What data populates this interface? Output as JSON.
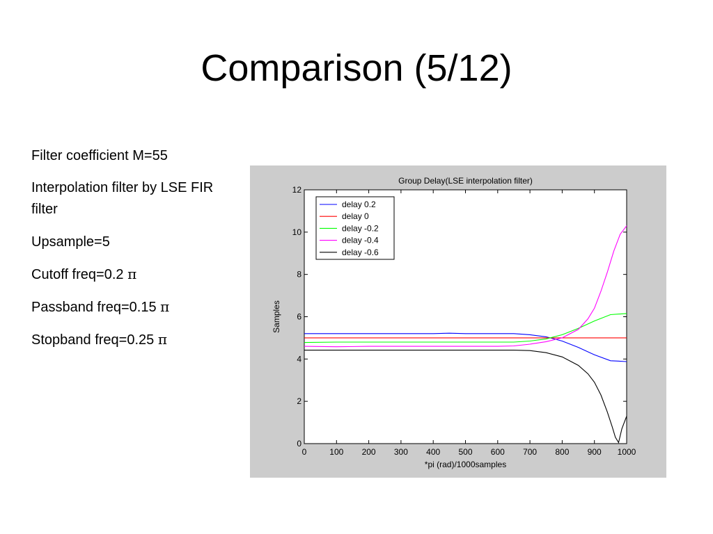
{
  "slide": {
    "title": "Comparison (5/12)",
    "bullets": [
      {
        "text": "Filter coefficient M=55",
        "pi": ""
      },
      {
        "text": "Interpolation filter by LSE FIR filter",
        "pi": ""
      },
      {
        "text": "Upsample=5",
        "pi": ""
      },
      {
        "text": "Cutoff freq=0.2 ",
        "pi": "π"
      },
      {
        "text": "Passband freq=0.15 ",
        "pi": "π"
      },
      {
        "text": "Stopband freq=0.25 ",
        "pi": "π"
      }
    ]
  },
  "colors": {
    "figure_background": "#cccccc",
    "axes_background": "#ffffff"
  },
  "chart_data": {
    "type": "line",
    "title": "Group Delay(LSE interpolation filter)",
    "xlabel": "*pi (rad)/1000samples",
    "ylabel": "Samples",
    "xlim": [
      0,
      1000
    ],
    "ylim": [
      0,
      12
    ],
    "xticks": [
      0,
      100,
      200,
      300,
      400,
      500,
      600,
      700,
      800,
      900,
      1000
    ],
    "yticks": [
      0,
      2,
      4,
      6,
      8,
      10,
      12
    ],
    "grid": false,
    "legend_position": "top-left",
    "series": [
      {
        "name": "delay 0.2",
        "color": "#0000ff",
        "x": [
          0,
          100,
          200,
          300,
          400,
          450,
          500,
          600,
          650,
          700,
          750,
          800,
          850,
          900,
          950,
          1000
        ],
        "y": [
          5.2,
          5.2,
          5.2,
          5.2,
          5.2,
          5.22,
          5.2,
          5.2,
          5.2,
          5.15,
          5.05,
          4.85,
          4.55,
          4.2,
          3.92,
          3.88
        ]
      },
      {
        "name": "delay 0",
        "color": "#ff0000",
        "x": [
          0,
          1000
        ],
        "y": [
          5.0,
          5.0
        ]
      },
      {
        "name": "delay -0.2",
        "color": "#00ff00",
        "x": [
          0,
          100,
          200,
          300,
          400,
          500,
          600,
          650,
          700,
          750,
          800,
          850,
          900,
          950,
          1000
        ],
        "y": [
          4.78,
          4.8,
          4.8,
          4.8,
          4.8,
          4.8,
          4.8,
          4.8,
          4.85,
          4.95,
          5.15,
          5.45,
          5.8,
          6.1,
          6.15
        ]
      },
      {
        "name": "delay -0.4",
        "color": "#ff00ff",
        "x": [
          0,
          100,
          200,
          300,
          400,
          500,
          600,
          650,
          700,
          750,
          800,
          850,
          880,
          900,
          920,
          940,
          960,
          980,
          1000
        ],
        "y": [
          4.6,
          4.58,
          4.6,
          4.6,
          4.6,
          4.6,
          4.6,
          4.62,
          4.7,
          4.82,
          5.0,
          5.4,
          5.9,
          6.4,
          7.2,
          8.1,
          9.1,
          9.9,
          10.3
        ]
      },
      {
        "name": "delay -0.6",
        "color": "#000000",
        "x": [
          0,
          100,
          200,
          300,
          400,
          500,
          600,
          650,
          700,
          750,
          800,
          850,
          880,
          900,
          920,
          940,
          955,
          965,
          975,
          985,
          1000
        ],
        "y": [
          4.42,
          4.42,
          4.42,
          4.42,
          4.42,
          4.42,
          4.42,
          4.42,
          4.4,
          4.3,
          4.1,
          3.7,
          3.3,
          2.9,
          2.3,
          1.5,
          0.8,
          0.3,
          0.05,
          0.7,
          1.3
        ]
      }
    ]
  }
}
